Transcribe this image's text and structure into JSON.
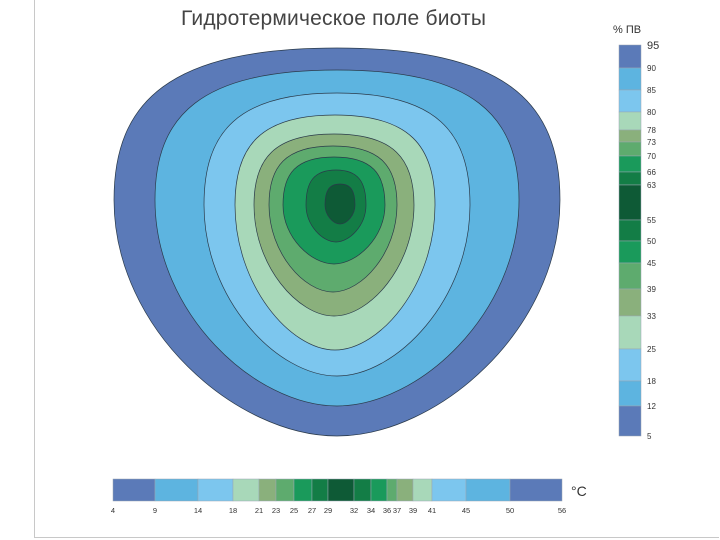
{
  "title": "Гидротермическое поле биоты",
  "vertical_scale": {
    "unit": "% ПВ",
    "ticks": [
      "95",
      "90",
      "85",
      "80",
      "78",
      "73",
      "70",
      "66",
      "63",
      "55",
      "50",
      "45",
      "39",
      "33",
      "25",
      "18",
      "12",
      "5"
    ]
  },
  "horizontal_scale": {
    "unit": "°C",
    "ticks": [
      "4",
      "9",
      "14",
      "18",
      "21",
      "23",
      "25",
      "27",
      "29",
      "32",
      "34",
      "36",
      "37",
      "39",
      "41",
      "45",
      "50",
      "56"
    ]
  },
  "colors": {
    "band1": "#5b7ab8",
    "band2": "#5db4e0",
    "band3": "#7cc6ee",
    "band4": "#a8d8b9",
    "band5": "#8ab07c",
    "band6": "#5eab6e",
    "band7": "#1a9a5b",
    "band8": "#137d46",
    "band9": "#0e5a36"
  }
}
